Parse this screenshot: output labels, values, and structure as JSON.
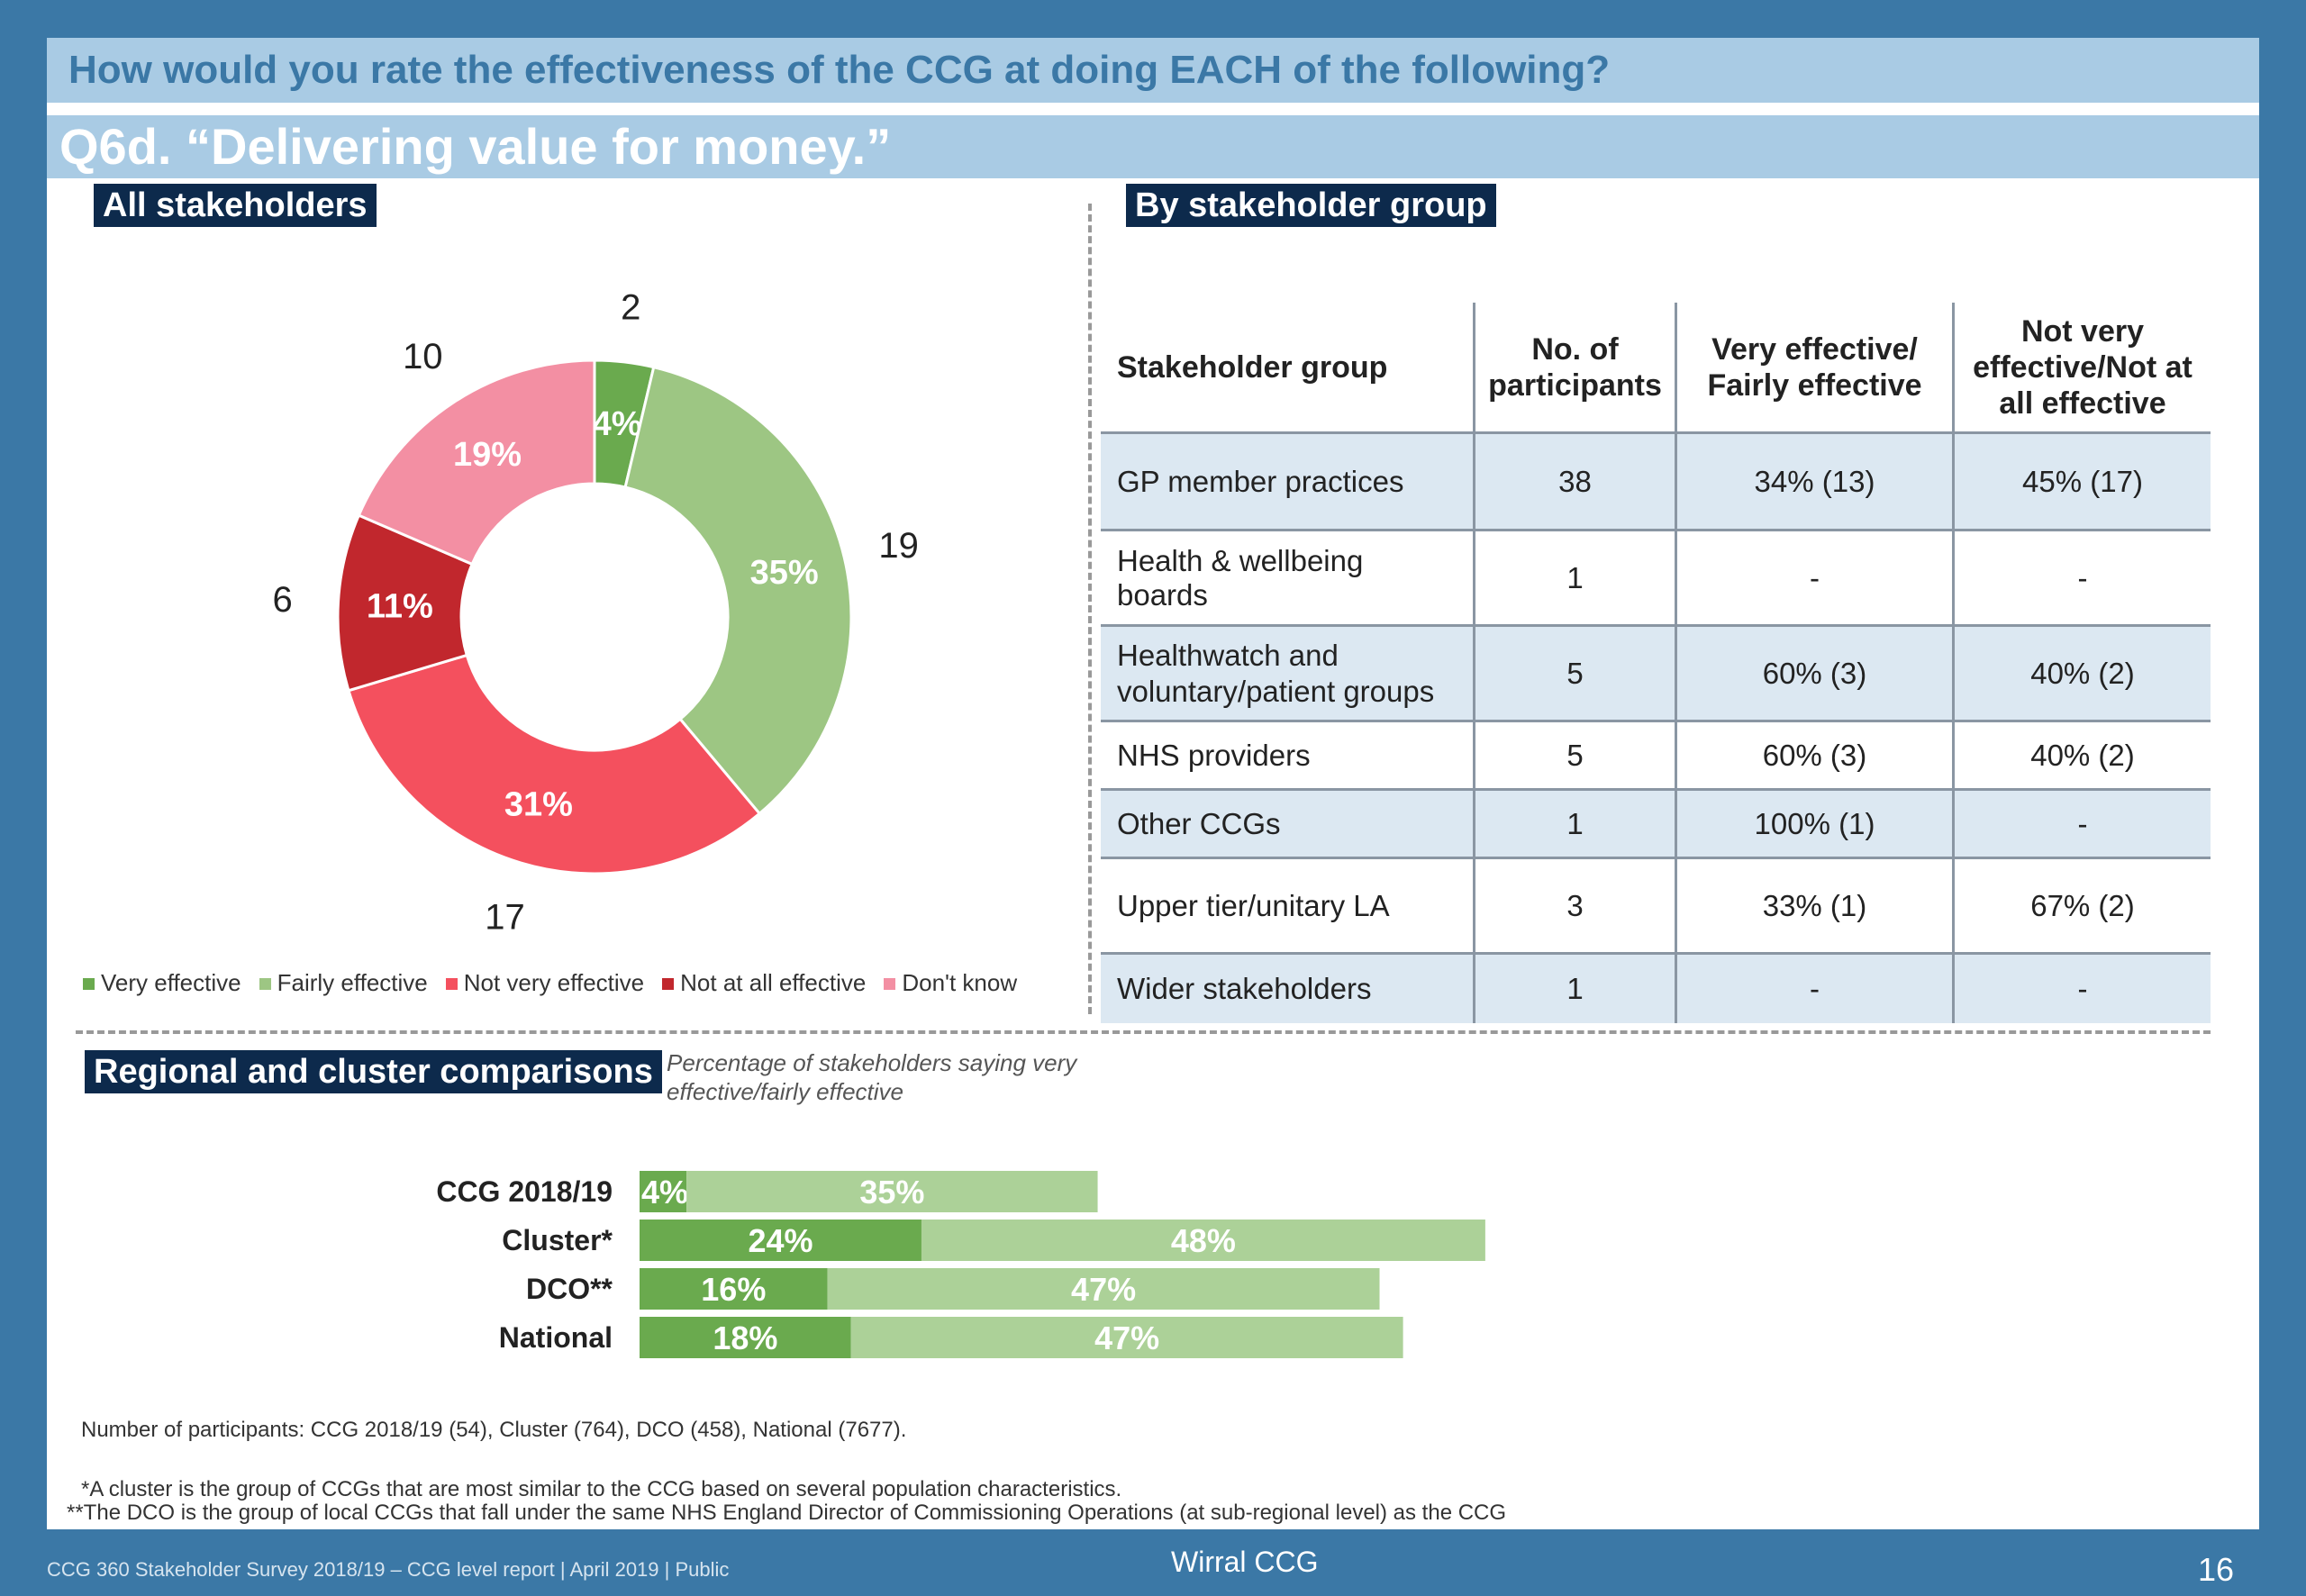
{
  "header": {
    "question": "How would you rate the effectiveness of the CCG at doing EACH of the following?",
    "subquestion": "Q6d. “Delivering value for money.”"
  },
  "sections": {
    "all": "All stakeholders",
    "by_group": "By stakeholder group",
    "regional": "Regional and cluster comparisons",
    "regional_note": "Percentage of stakeholders saying very effective/fairly effective"
  },
  "chart_data": [
    {
      "type": "pie",
      "donut": true,
      "labels": [
        "Very effective",
        "Fairly effective",
        "Not very effective",
        "Not at all effective",
        "Don't know"
      ],
      "counts": [
        2,
        19,
        17,
        6,
        10
      ],
      "percentages": [
        "4%",
        "35%",
        "31%",
        "11%",
        "19%"
      ],
      "colors": [
        "#6aaa4e",
        "#9dc683",
        "#f4505e",
        "#c1272d",
        "#f38fa3"
      ],
      "legend_position": "bottom"
    },
    {
      "type": "bar",
      "orientation": "horizontal",
      "stacked": true,
      "categories": [
        "CCG 2018/19",
        "Cluster*",
        "DCO**",
        "National"
      ],
      "series": [
        {
          "name": "Very effective",
          "values": [
            4,
            24,
            16,
            18
          ],
          "color": "#6aaa4e"
        },
        {
          "name": "Fairly effective",
          "values": [
            35,
            48,
            47,
            47
          ],
          "color": "#acd198"
        }
      ],
      "value_suffix": "%",
      "xlim": [
        0,
        100
      ]
    }
  ],
  "table": {
    "headers": [
      "Stakeholder group",
      "No. of participants",
      "Very effective/ Fairly effective",
      "Not very effective/Not at all effective"
    ],
    "rows": [
      [
        "GP member practices",
        "38",
        "34% (13)",
        "45% (17)"
      ],
      [
        "Health & wellbeing boards",
        "1",
        "-",
        "-"
      ],
      [
        "Healthwatch and voluntary/patient groups",
        "5",
        "60% (3)",
        "40% (2)"
      ],
      [
        "NHS providers",
        "5",
        "60% (3)",
        "40% (2)"
      ],
      [
        "Other CCGs",
        "1",
        "100% (1)",
        "-"
      ],
      [
        "Upper tier/unitary LA",
        "3",
        "33% (1)",
        "67% (2)"
      ],
      [
        "Wider stakeholders",
        "1",
        "-",
        "-"
      ]
    ]
  },
  "footnotes": {
    "participants": "Number of participants: CCG 2018/19 (54), Cluster (764), DCO (458), National (7677).",
    "cluster": "*A cluster is the group of CCGs that are most similar to the CCG based on several population characteristics.",
    "dco": "**The DCO is the group of local CCGs that fall under the same NHS England Director of Commissioning Operations (at sub-regional level) as the CCG"
  },
  "footer": {
    "left": "CCG 360 Stakeholder Survey 2018/19 – CCG level report | April 2019 | Public",
    "center": "Wirral CCG",
    "page": "16"
  }
}
